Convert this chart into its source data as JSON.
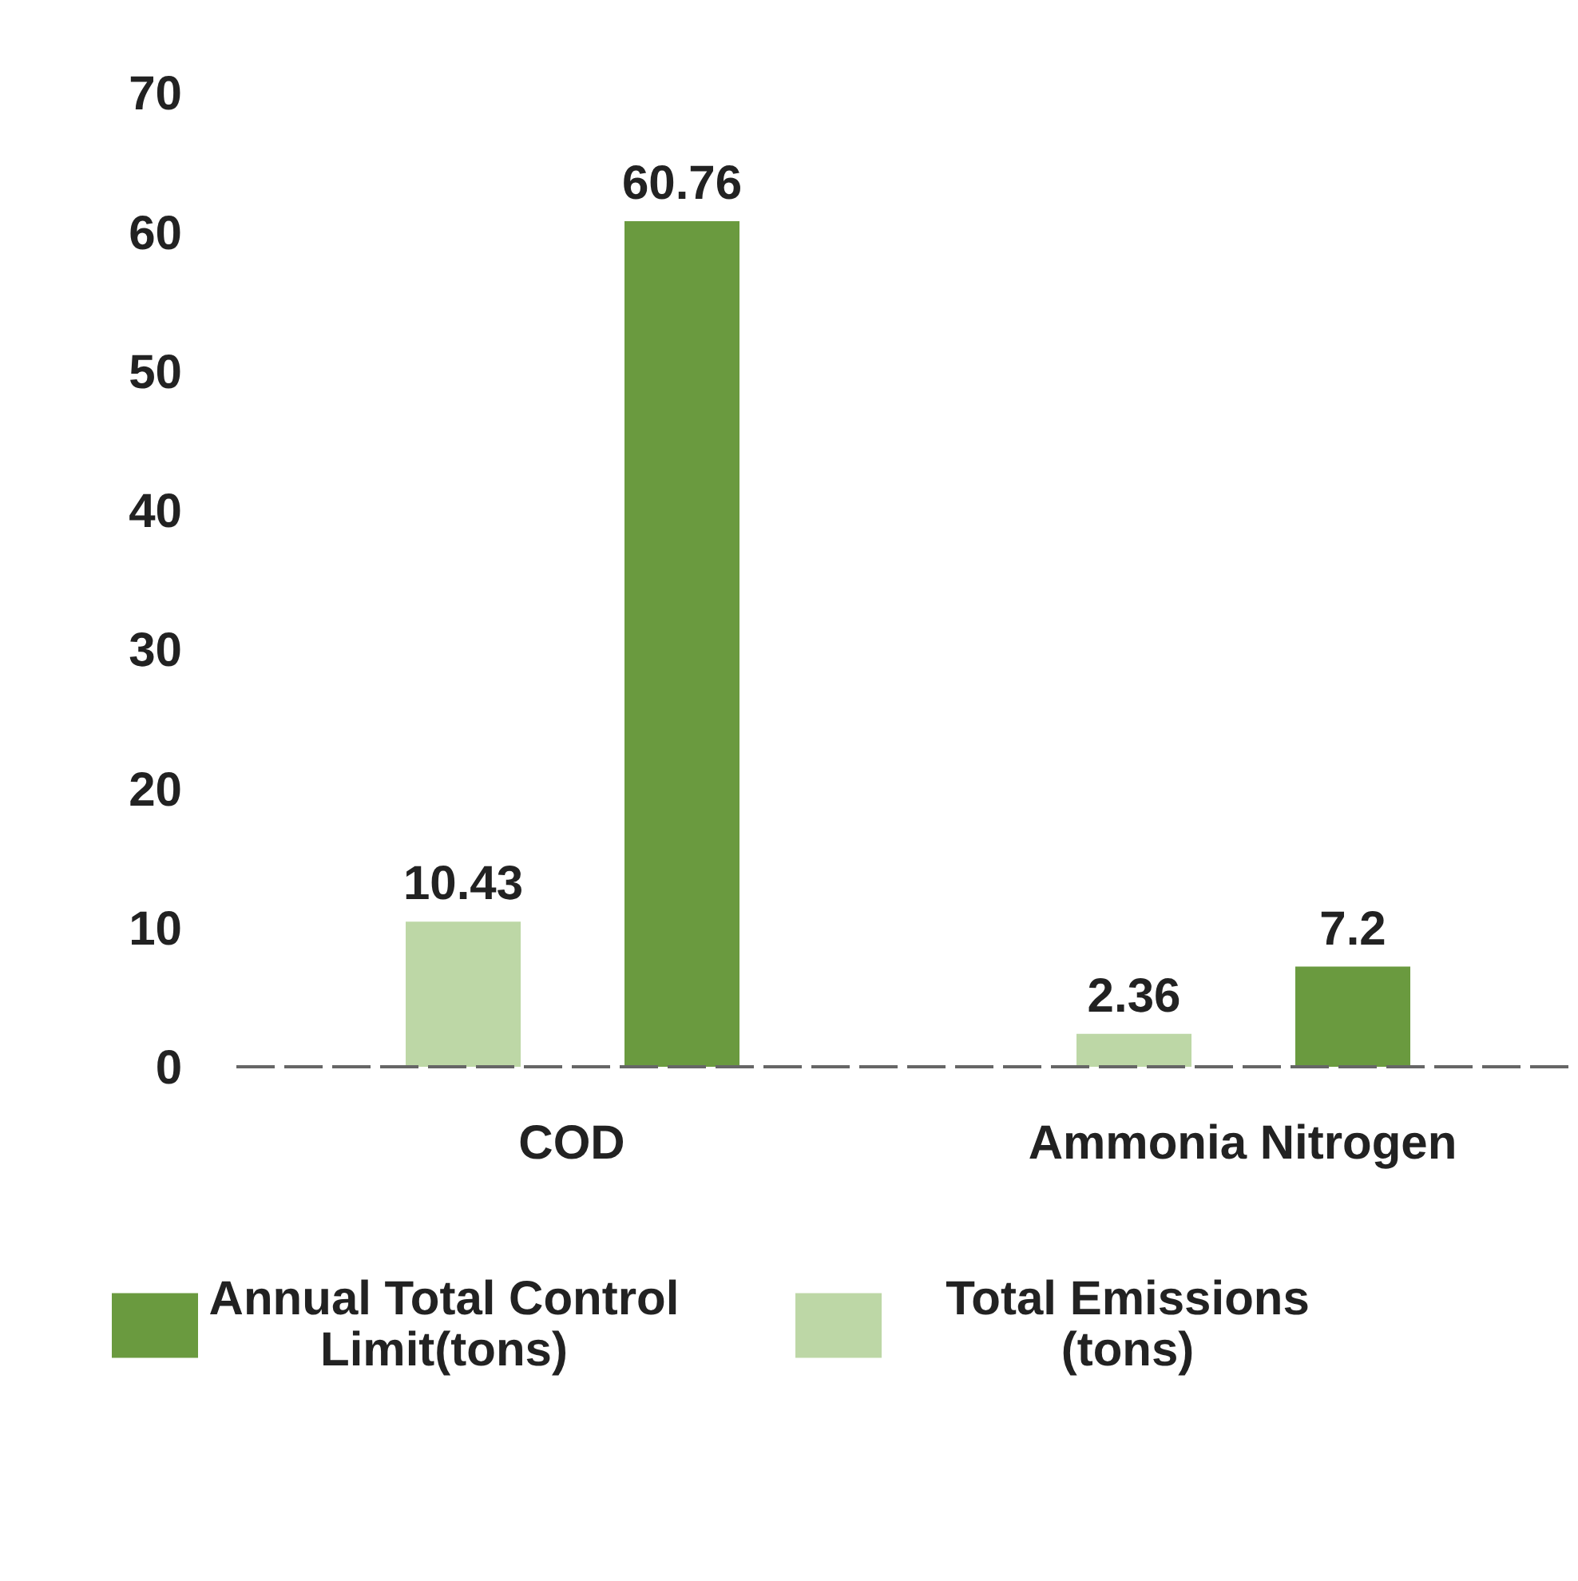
{
  "chart_data": {
    "type": "bar",
    "categories": [
      "COD",
      "Ammonia Nitrogen"
    ],
    "series": [
      {
        "name": "Total Emissions (tons)",
        "color": "#bdd7a6",
        "values": [
          10.43,
          2.36
        ]
      },
      {
        "name": "Annual Total Control Limit(tons)",
        "color": "#6a9a3f",
        "values": [
          60.76,
          7.2
        ]
      }
    ],
    "ylim": [
      0,
      70
    ],
    "yticks": [
      0,
      10,
      20,
      30,
      40,
      50,
      60,
      70
    ],
    "data_labels": true,
    "grid": false,
    "legend": "bottom"
  }
}
